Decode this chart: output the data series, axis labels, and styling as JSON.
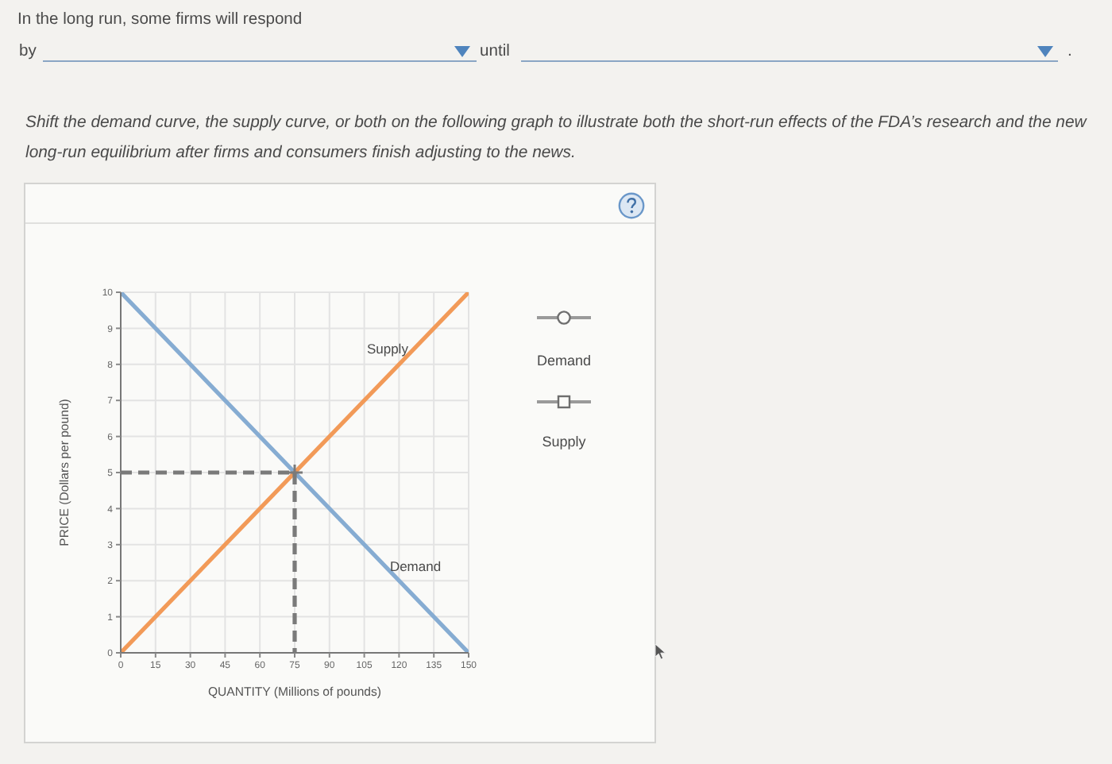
{
  "chart_data": {
    "type": "line",
    "title": "Shift the demand curve, the supply curve, or both on the following graph to illustrate both the short-run effects of the FDA’s research and the new long-run equilibrium after firms and consumers finish adjusting to the news.",
    "xlabel": "QUANTITY (Millions of pounds)",
    "ylabel": "PRICE (Dollars per pound)",
    "annotations": [
      "In the long run, some firms will respond",
      "by",
      "until",
      ".",
      "Demand",
      "Supply"
    ],
    "xlim": [
      0,
      150
    ],
    "xticks": [
      0,
      15,
      30,
      45,
      60,
      75,
      90,
      105,
      120,
      135,
      150
    ],
    "ylim": [
      0,
      10
    ],
    "yticks": [
      0,
      1,
      2,
      3,
      4,
      5,
      6,
      7,
      8,
      9,
      10
    ],
    "grid": true,
    "marker": "none",
    "line_style": "solid",
    "series": [
      {
        "name": "Demand",
        "color": "#86acd2",
        "x": [
          0,
          150
        ],
        "values": [
          10,
          0
        ]
      },
      {
        "name": "Supply",
        "color": "#f29a58",
        "x": [
          0,
          150
        ],
        "values": [
          0,
          10
        ]
      },
      {
        "type": "line",
        "color": "#7a7a7a",
        "line_style": "dashed",
        "x": [
          0,
          75,
          75
        ],
        "values": [
          5,
          5,
          0
        ]
      },
      {
        "type": "scatter",
        "color": "#7a7a7a",
        "marker": "cross",
        "x": [
          75
        ],
        "values": [
          5
        ]
      }
    ]
  }
}
